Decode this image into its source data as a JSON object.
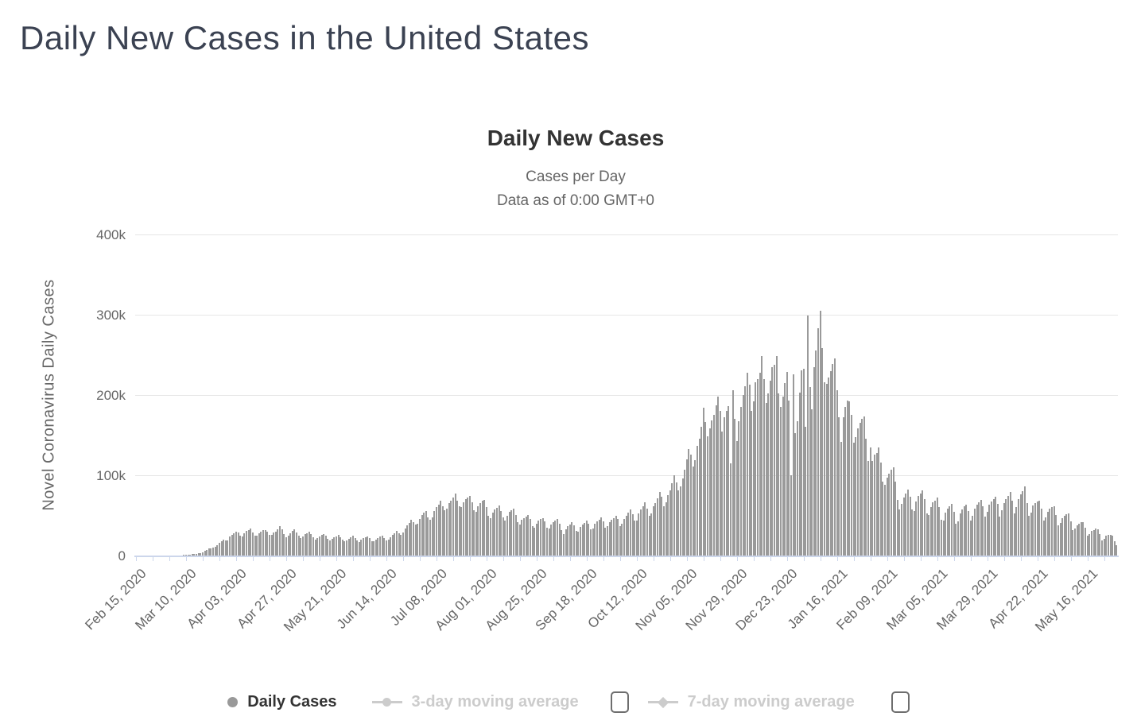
{
  "page": {
    "title": "Daily New Cases in the United States"
  },
  "chart": {
    "title": "Daily New Cases",
    "subtitle1": "Cases per Day",
    "subtitle2": "Data as of 0:00 GMT+0",
    "y_axis_title": "Novel Coronavirus Daily Cases",
    "legend": [
      {
        "label": "Daily Cases",
        "marker": "circle",
        "enabled": true,
        "checkbox": false
      },
      {
        "label": "3-day moving average",
        "marker": "line-circle",
        "enabled": false,
        "checkbox": true,
        "checked": false
      },
      {
        "label": "7-day moving average",
        "marker": "line-diamond",
        "enabled": false,
        "checkbox": true,
        "checked": false
      }
    ],
    "colors": {
      "bar": "#9a9a9a",
      "grid": "#e6e6e6",
      "axis_line": "#ccd6eb",
      "axis_label": "#666666",
      "title": "#333333",
      "disabled_legend": "#cccccc",
      "page_title": "#3b4252"
    }
  },
  "chart_data": {
    "type": "bar",
    "title": "Daily New Cases",
    "series_name": "Daily Cases",
    "xlabel": "",
    "ylabel": "Novel Coronavirus Daily Cases",
    "unit": "cases per day (thousands)",
    "start_date": "Feb 15, 2020",
    "end_date": "May 30, 2021",
    "grid": true,
    "legend_position": "bottom",
    "ylim_k": [
      0,
      400
    ],
    "y_gridlines_k": [
      0,
      100,
      200,
      300,
      400
    ],
    "y_tick_labels": [
      "0",
      "100k",
      "200k",
      "300k",
      "400k"
    ],
    "x_tick_interval_days": 24,
    "x_tick_labels": [
      "Feb 15, 2020",
      "Mar 10, 2020",
      "Apr 03, 2020",
      "Apr 27, 2020",
      "May 21, 2020",
      "Jun 14, 2020",
      "Jul 08, 2020",
      "Aug 01, 2020",
      "Aug 25, 2020",
      "Sep 18, 2020",
      "Oct 12, 2020",
      "Nov 05, 2020",
      "Nov 29, 2020",
      "Dec 23, 2020",
      "Jan 16, 2021",
      "Feb 09, 2021",
      "Mar 05, 2021",
      "Mar 29, 2021",
      "Apr 22, 2021",
      "May 16, 2021"
    ],
    "values_k": [
      0,
      0,
      0,
      0,
      0,
      0,
      0,
      0,
      0,
      0,
      0,
      0,
      0.1,
      0.1,
      0.1,
      0.1,
      0.1,
      0.1,
      0.2,
      0.3,
      0.4,
      0.4,
      0.5,
      0.6,
      0.8,
      1,
      1.3,
      1.7,
      2,
      2.2,
      2.6,
      3.3,
      4.4,
      5.8,
      7.2,
      8.5,
      9,
      10,
      11.2,
      13,
      16,
      18,
      19.5,
      18.4,
      19,
      23.5,
      25.8,
      28.2,
      30,
      29,
      24.5,
      23.8,
      28,
      30.5,
      32,
      33.5,
      28.5,
      25,
      24.3,
      27.5,
      29.5,
      31.5,
      32,
      30,
      26,
      25.5,
      28.5,
      30,
      33,
      36.2,
      32.5,
      27,
      23,
      25,
      28,
      30.5,
      33,
      28.5,
      24.5,
      22,
      24,
      26.5,
      28,
      29.5,
      26.5,
      22.5,
      20,
      22,
      23.5,
      25.5,
      27,
      24.5,
      20.5,
      19,
      21,
      22.5,
      24,
      25.5,
      22.5,
      19.5,
      17.5,
      19,
      21,
      23,
      24.5,
      22,
      19,
      17,
      19.5,
      21.5,
      22.5,
      24,
      21.5,
      18,
      17.5,
      20,
      22,
      23.5,
      25,
      22,
      18.5,
      19.5,
      23,
      25.5,
      28,
      31,
      28,
      26,
      28.5,
      34,
      38,
      41,
      45,
      42,
      38.5,
      40,
      46,
      50.5,
      53,
      55.5,
      48,
      45,
      47.5,
      55,
      60,
      63.5,
      68,
      61.5,
      56.5,
      58,
      65,
      68.5,
      72,
      77.3,
      68.5,
      61,
      60.5,
      66,
      70,
      72.5,
      74,
      66,
      56,
      54.5,
      61,
      65.5,
      68,
      69.5,
      60,
      49.5,
      47,
      53.5,
      57.5,
      59,
      62.5,
      55,
      47.5,
      44,
      50,
      54,
      56,
      58,
      51,
      42,
      38.5,
      44.5,
      47,
      49,
      50.5,
      45.5,
      36.5,
      35,
      40,
      43.5,
      45.5,
      47,
      43,
      35,
      33.5,
      39,
      41.5,
      43.5,
      45.5,
      40,
      31.5,
      26.5,
      33,
      36.5,
      38.5,
      41.5,
      37.5,
      31,
      29.5,
      35.5,
      38.5,
      41,
      44,
      39.5,
      32.5,
      34,
      39.5,
      42.5,
      44.5,
      47.5,
      43,
      35,
      36.5,
      42,
      44.5,
      46.5,
      49.5,
      45.5,
      37,
      39.5,
      45.5,
      49.5,
      53,
      57,
      51.5,
      43.5,
      44,
      52,
      57.5,
      61.5,
      66.5,
      58,
      49.5,
      52.5,
      61,
      65,
      71.5,
      79,
      73.5,
      61.5,
      66.5,
      75.5,
      81.5,
      90,
      100,
      91,
      81.5,
      86.5,
      96.5,
      107,
      119.5,
      132.5,
      126,
      110.5,
      119,
      136.5,
      145.5,
      160,
      184,
      166.5,
      148.5,
      158.5,
      168,
      175,
      187.5,
      198.5,
      180,
      154,
      172.5,
      180.5,
      186,
      115,
      205.5,
      170.5,
      143,
      167.5,
      185,
      200,
      210.5,
      227.5,
      213,
      180.5,
      192,
      215.5,
      220,
      228,
      248.5,
      219.5,
      190,
      201.5,
      218,
      234.5,
      238,
      249,
      201.5,
      185.5,
      198,
      215,
      228.5,
      193,
      100.5,
      225.5,
      152.5,
      167,
      202.5,
      230.5,
      232.5,
      160.5,
      299,
      210,
      182.5,
      235,
      255.5,
      283,
      304.5,
      258.5,
      216,
      213.5,
      222,
      229.5,
      238.5,
      245.5,
      205.5,
      172,
      141.5,
      172.5,
      185.5,
      193.5,
      192,
      175,
      140.5,
      147.5,
      158.5,
      165,
      170,
      173.5,
      145.5,
      117.5,
      134.5,
      117.5,
      125.5,
      128,
      135,
      115.5,
      92.5,
      88,
      97,
      102,
      106.5,
      110,
      92.5,
      69.5,
      57.5,
      64.5,
      72.5,
      77,
      82,
      73.5,
      57,
      55.5,
      67.5,
      74,
      77.5,
      81.5,
      70.5,
      52.5,
      50.5,
      60,
      66,
      68.5,
      72.5,
      60.5,
      44.5,
      43.5,
      53.5,
      58.5,
      61.5,
      64,
      54.5,
      40,
      42.5,
      52.5,
      57.5,
      61,
      63.5,
      55.5,
      43.5,
      49.5,
      58.5,
      63.5,
      66,
      69.5,
      61.5,
      48.5,
      54.5,
      63.5,
      67.5,
      70.5,
      73.5,
      64.5,
      49,
      56.5,
      65.5,
      70.5,
      74.5,
      79.5,
      68.5,
      52,
      60,
      70,
      76,
      80,
      86,
      65.5,
      49.5,
      53.5,
      62.5,
      65.5,
      67,
      68.5,
      58.5,
      44,
      47.5,
      54.5,
      58.5,
      60.5,
      61.5,
      50.5,
      38,
      40.5,
      46.5,
      49.5,
      51.5,
      52.5,
      42.5,
      31.5,
      33.5,
      38,
      40,
      41.5,
      42,
      34.5,
      25,
      26.5,
      30.5,
      32,
      33.5,
      33,
      26.5,
      19,
      20.5,
      24.5,
      25.5,
      26,
      25,
      17.5,
      12.5
    ]
  }
}
